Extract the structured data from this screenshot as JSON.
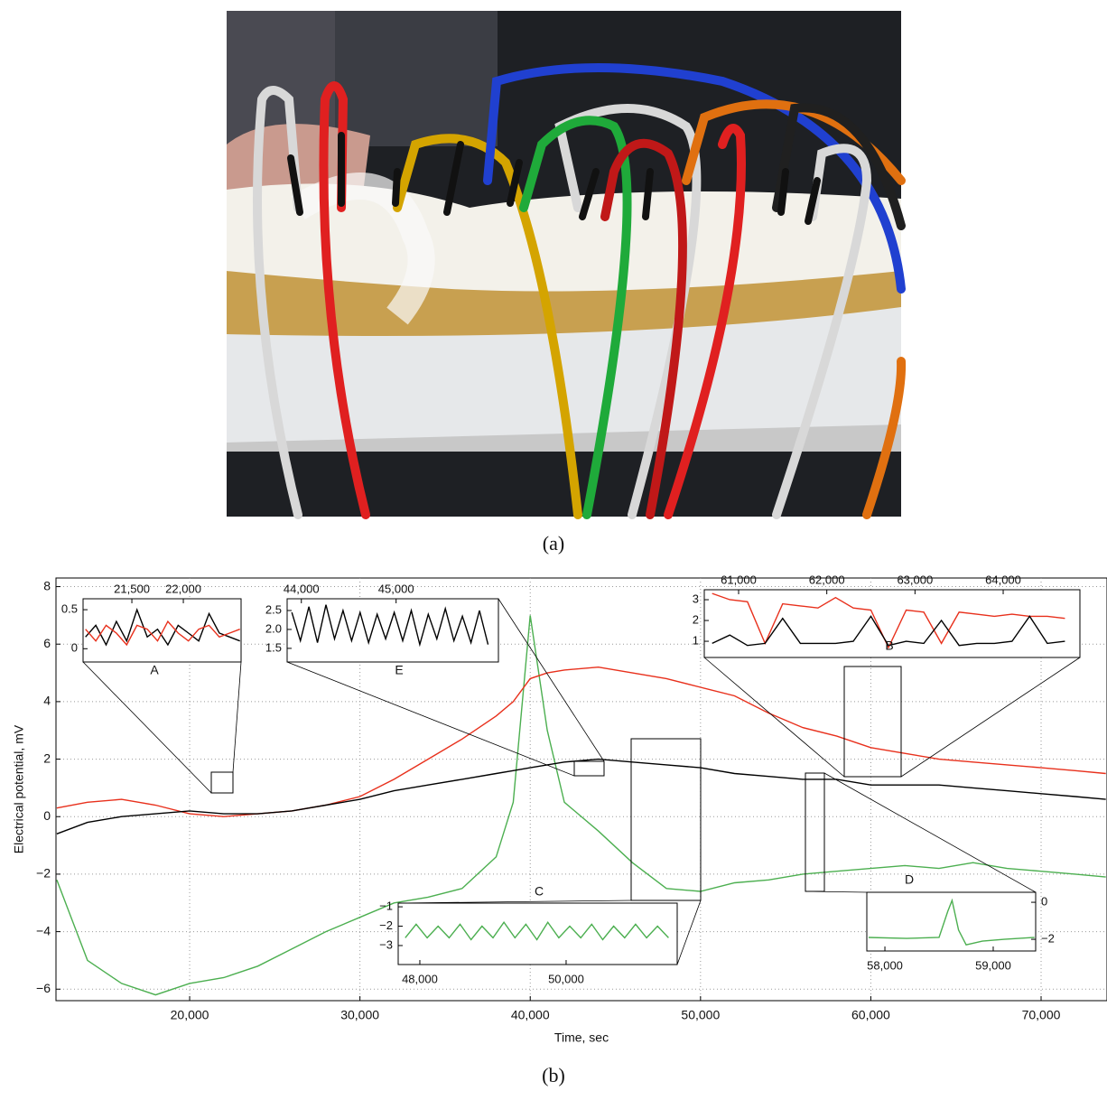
{
  "photo_caption": "(a)",
  "chart_caption": "(b)",
  "chart_data": [
    {
      "type": "line",
      "xlabel": "Time, sec",
      "ylabel": "Electrical potential, mV",
      "xlim": [
        12150,
        73870
      ],
      "ylim": [
        -6.4,
        8.3
      ],
      "grid": true,
      "xticks": [
        {
          "value": 20000,
          "label": "20,000"
        },
        {
          "value": 30000,
          "label": "30,000"
        },
        {
          "value": 40000,
          "label": "40,000"
        },
        {
          "value": 50000,
          "label": "50,000"
        },
        {
          "value": 60000,
          "label": "60,000"
        },
        {
          "value": 70000,
          "label": "70,000"
        }
      ],
      "yticks": [
        {
          "value": -6,
          "label": "−6"
        },
        {
          "value": -4,
          "label": "−4"
        },
        {
          "value": -2,
          "label": "−2"
        },
        0,
        2,
        4,
        6,
        8
      ],
      "x": [
        12200,
        14000,
        16000,
        18000,
        20000,
        22000,
        24000,
        26000,
        28000,
        30000,
        32000,
        34000,
        36000,
        38000,
        39000,
        40000,
        41000,
        42000,
        44000,
        46000,
        48000,
        50000,
        52000,
        54000,
        56000,
        58000,
        60000,
        62000,
        64000,
        66000,
        68000,
        70000,
        72000,
        73800
      ],
      "series": [
        {
          "color": "#4caf50",
          "values": [
            -2.2,
            -5.0,
            -5.8,
            -6.2,
            -5.8,
            -5.6,
            -5.2,
            -4.6,
            -4.0,
            -3.5,
            -3.0,
            -2.8,
            -2.5,
            -1.4,
            0.5,
            7.0,
            3.0,
            0.5,
            -0.5,
            -1.6,
            -2.5,
            -2.6,
            -2.3,
            -2.2,
            -2.0,
            -1.9,
            -1.8,
            -1.7,
            -1.8,
            -1.6,
            -1.8,
            -1.9,
            -2.0,
            -2.1
          ]
        },
        {
          "color": "#e8301c",
          "values": [
            0.3,
            0.5,
            0.6,
            0.4,
            0.1,
            0.0,
            0.1,
            0.2,
            0.4,
            0.7,
            1.3,
            2.0,
            2.7,
            3.5,
            4.0,
            4.8,
            5.0,
            5.1,
            5.2,
            5.0,
            4.8,
            4.5,
            4.2,
            3.6,
            3.1,
            2.8,
            2.4,
            2.2,
            2.0,
            1.9,
            1.8,
            1.7,
            1.6,
            1.5
          ]
        },
        {
          "color": "#000000",
          "values": [
            -0.6,
            -0.2,
            0.0,
            0.1,
            0.2,
            0.1,
            0.1,
            0.2,
            0.4,
            0.6,
            0.9,
            1.1,
            1.3,
            1.5,
            1.6,
            1.7,
            1.8,
            1.9,
            2.0,
            1.9,
            1.8,
            1.7,
            1.5,
            1.4,
            1.3,
            1.3,
            1.1,
            1.1,
            1.1,
            1.0,
            0.9,
            0.8,
            0.7,
            0.6
          ]
        }
      ]
    },
    {
      "type": "line",
      "label": "A",
      "xlim": [
        21026,
        22561
      ],
      "ylim": [
        -0.17,
        0.64
      ],
      "xticks": [
        {
          "value": 21500,
          "label": "21,500"
        },
        {
          "value": 22000,
          "label": "22,000"
        }
      ],
      "yticks": [
        0,
        0.5
      ],
      "x": [
        21050,
        21150,
        21250,
        21350,
        21450,
        21550,
        21650,
        21750,
        21850,
        21950,
        22050,
        22150,
        22250,
        22350,
        22450,
        22550
      ],
      "series": [
        {
          "color": "#000000",
          "values": [
            0.15,
            0.3,
            0.05,
            0.35,
            0.1,
            0.5,
            0.15,
            0.25,
            0.05,
            0.3,
            0.2,
            0.1,
            0.45,
            0.2,
            0.15,
            0.1
          ]
        },
        {
          "color": "#e8301c",
          "values": [
            0.25,
            0.1,
            0.3,
            0.2,
            0.05,
            0.3,
            0.25,
            0.1,
            0.35,
            0.2,
            0.1,
            0.25,
            0.3,
            0.15,
            0.2,
            0.25
          ]
        }
      ]
    },
    {
      "type": "line",
      "label": "E",
      "xlim": [
        43850,
        46080
      ],
      "ylim": [
        1.14,
        2.81
      ],
      "xticks": [
        {
          "value": 44000,
          "label": "44,000"
        },
        {
          "value": 45000,
          "label": "45,000"
        }
      ],
      "yticks": [
        1.5,
        {
          "value": 2,
          "label": "2.0"
        },
        2.5
      ],
      "x": [
        43900,
        43990,
        44080,
        44170,
        44260,
        44350,
        44440,
        44530,
        44620,
        44710,
        44800,
        44890,
        44980,
        45070,
        45160,
        45250,
        45340,
        45430,
        45520,
        45610,
        45700,
        45790,
        45880,
        45970
      ],
      "series": [
        {
          "color": "#000000",
          "values": [
            2.45,
            1.7,
            2.6,
            1.65,
            2.65,
            1.75,
            2.5,
            1.7,
            2.45,
            1.65,
            2.4,
            1.75,
            2.45,
            1.7,
            2.5,
            1.6,
            2.4,
            1.75,
            2.55,
            1.7,
            2.35,
            1.65,
            2.5,
            1.6
          ]
        }
      ]
    },
    {
      "type": "line",
      "label": "B",
      "xlim": [
        60611,
        64870
      ],
      "ylim": [
        0.22,
        3.48
      ],
      "xticks": [
        {
          "value": 61000,
          "label": "61,000"
        },
        {
          "value": 62000,
          "label": "62,000"
        },
        {
          "value": 63000,
          "label": "63,000"
        },
        {
          "value": 64000,
          "label": "64,000"
        }
      ],
      "yticks": [
        1,
        2,
        3
      ],
      "x": [
        60700,
        60900,
        61100,
        61300,
        61500,
        61700,
        61900,
        62100,
        62300,
        62500,
        62700,
        62900,
        63100,
        63300,
        63500,
        63700,
        63900,
        64100,
        64300,
        64500,
        64700
      ],
      "series": [
        {
          "color": "#e8301c",
          "values": [
            3.3,
            3.0,
            2.9,
            0.9,
            2.8,
            2.7,
            2.6,
            3.1,
            2.6,
            2.5,
            0.7,
            2.5,
            2.4,
            0.9,
            2.4,
            2.3,
            2.2,
            2.3,
            2.2,
            2.2,
            2.1
          ]
        },
        {
          "color": "#000000",
          "values": [
            0.9,
            1.3,
            0.8,
            0.9,
            2.1,
            0.9,
            0.9,
            0.9,
            1.0,
            2.2,
            0.8,
            1.0,
            0.9,
            2.0,
            0.8,
            0.9,
            0.9,
            1.0,
            2.2,
            0.9,
            1.0
          ]
        }
      ]
    },
    {
      "type": "line",
      "label": "C",
      "xlim": [
        47704,
        51519
      ],
      "ylim": [
        -3.98,
        -0.81
      ],
      "xticks": [
        {
          "value": 48000,
          "label": "48,000"
        },
        {
          "value": 50000,
          "label": "50,000"
        }
      ],
      "yticks": [
        {
          "value": -3,
          "label": "−3"
        },
        {
          "value": -2,
          "label": "−2"
        },
        {
          "value": -1,
          "label": "−1"
        }
      ],
      "x": [
        47800,
        47950,
        48100,
        48250,
        48400,
        48550,
        48700,
        48850,
        49000,
        49150,
        49300,
        49450,
        49600,
        49750,
        49900,
        50050,
        50200,
        50350,
        50500,
        50650,
        50800,
        50950,
        51100,
        51250,
        51400
      ],
      "series": [
        {
          "color": "#4caf50",
          "values": [
            -2.6,
            -1.9,
            -2.6,
            -2.0,
            -2.6,
            -1.9,
            -2.7,
            -2.0,
            -2.6,
            -1.8,
            -2.6,
            -1.9,
            -2.7,
            -1.8,
            -2.6,
            -2.0,
            -2.6,
            -1.9,
            -2.7,
            -2.0,
            -2.6,
            -1.9,
            -2.6,
            -2.0,
            -2.6
          ]
        }
      ]
    },
    {
      "type": "line",
      "label": "D",
      "xlim": [
        57833,
        59392
      ],
      "ylim": [
        -2.63,
        0.54
      ],
      "xticks": [
        {
          "value": 58000,
          "label": "58,000"
        },
        {
          "value": 59000,
          "label": "59,000"
        }
      ],
      "yticks": [
        {
          "value": -2,
          "label": "−2"
        },
        0
      ],
      "x": [
        57850,
        58200,
        58500,
        58580,
        58620,
        58680,
        58750,
        58900,
        59100,
        59380
      ],
      "series": [
        {
          "color": "#4caf50",
          "values": [
            -1.9,
            -1.95,
            -1.9,
            -0.5,
            0.1,
            -1.5,
            -2.3,
            -2.1,
            -2.0,
            -1.9
          ]
        }
      ]
    }
  ]
}
